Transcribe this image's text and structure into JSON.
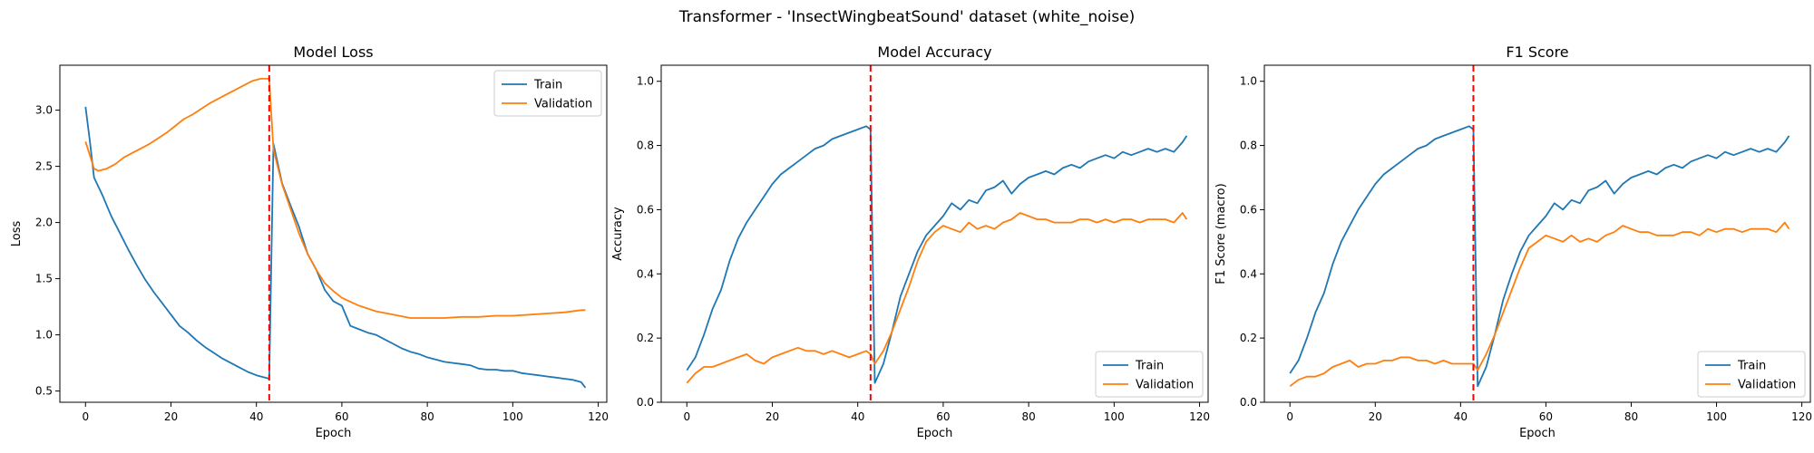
{
  "figure_title": "Transformer - 'InsectWingbeatSound' dataset (white_noise)",
  "colors": {
    "train": "#1f77b4",
    "validation": "#ff7f0e",
    "marker": "#ff0000"
  },
  "chart_data": [
    {
      "type": "line",
      "title": "Model Loss",
      "xlabel": "Epoch",
      "ylabel": "Loss",
      "xlim": [
        -6,
        122
      ],
      "ylim": [
        0.4,
        3.4
      ],
      "xticks": [
        0,
        20,
        40,
        60,
        80,
        100,
        120
      ],
      "yticks": [
        0.5,
        1.0,
        1.5,
        2.0,
        2.5,
        3.0
      ],
      "ytick_labels": [
        "0.5",
        "1.0",
        "1.5",
        "2.0",
        "2.5",
        "3.0"
      ],
      "legend_loc": "upper-right",
      "vline_x": 43,
      "series": [
        {
          "name": "Train",
          "color": "#1f77b4",
          "x": [
            0,
            1,
            2,
            4,
            6,
            8,
            10,
            12,
            14,
            16,
            18,
            20,
            22,
            24,
            26,
            28,
            30,
            32,
            34,
            36,
            38,
            40,
            42,
            43,
            44,
            46,
            48,
            50,
            52,
            54,
            56,
            58,
            60,
            62,
            64,
            66,
            68,
            70,
            72,
            74,
            76,
            78,
            80,
            82,
            84,
            86,
            88,
            90,
            92,
            94,
            96,
            98,
            100,
            102,
            104,
            106,
            108,
            110,
            112,
            114,
            116,
            117
          ],
          "y": [
            3.03,
            2.73,
            2.4,
            2.24,
            2.06,
            1.91,
            1.76,
            1.62,
            1.49,
            1.38,
            1.28,
            1.18,
            1.08,
            1.02,
            0.95,
            0.89,
            0.84,
            0.79,
            0.75,
            0.71,
            0.67,
            0.64,
            0.62,
            0.61,
            2.7,
            2.35,
            2.15,
            1.96,
            1.72,
            1.58,
            1.4,
            1.3,
            1.26,
            1.08,
            1.05,
            1.02,
            1.0,
            0.96,
            0.92,
            0.88,
            0.85,
            0.83,
            0.8,
            0.78,
            0.76,
            0.75,
            0.74,
            0.73,
            0.7,
            0.69,
            0.69,
            0.68,
            0.68,
            0.66,
            0.65,
            0.64,
            0.63,
            0.62,
            0.61,
            0.6,
            0.58,
            0.53
          ]
        },
        {
          "name": "Validation",
          "color": "#ff7f0e",
          "x": [
            0,
            1,
            2,
            3,
            5,
            7,
            9,
            11,
            13,
            15,
            17,
            19,
            21,
            23,
            25,
            27,
            29,
            31,
            33,
            35,
            37,
            39,
            41,
            43,
            44,
            46,
            48,
            50,
            52,
            54,
            56,
            58,
            60,
            64,
            68,
            72,
            76,
            80,
            84,
            88,
            92,
            96,
            100,
            104,
            108,
            112,
            116,
            117
          ],
          "y": [
            2.72,
            2.6,
            2.48,
            2.46,
            2.48,
            2.52,
            2.58,
            2.62,
            2.66,
            2.7,
            2.75,
            2.8,
            2.86,
            2.92,
            2.96,
            3.01,
            3.06,
            3.1,
            3.14,
            3.18,
            3.22,
            3.26,
            3.28,
            3.28,
            2.65,
            2.34,
            2.12,
            1.9,
            1.72,
            1.58,
            1.46,
            1.39,
            1.33,
            1.26,
            1.21,
            1.18,
            1.15,
            1.15,
            1.15,
            1.16,
            1.16,
            1.17,
            1.17,
            1.18,
            1.19,
            1.2,
            1.22,
            1.22
          ]
        }
      ]
    },
    {
      "type": "line",
      "title": "Model Accuracy",
      "xlabel": "Epoch",
      "ylabel": "Accuracy",
      "xlim": [
        -6,
        122
      ],
      "ylim": [
        0.0,
        1.05
      ],
      "xticks": [
        0,
        20,
        40,
        60,
        80,
        100,
        120
      ],
      "yticks": [
        0.0,
        0.2,
        0.4,
        0.6,
        0.8,
        1.0
      ],
      "ytick_labels": [
        "0.0",
        "0.2",
        "0.4",
        "0.6",
        "0.8",
        "1.0"
      ],
      "legend_loc": "lower-right",
      "vline_x": 43,
      "series": [
        {
          "name": "Train",
          "color": "#1f77b4",
          "x": [
            0,
            2,
            4,
            6,
            8,
            10,
            12,
            14,
            16,
            18,
            20,
            22,
            24,
            26,
            28,
            30,
            32,
            34,
            36,
            38,
            40,
            42,
            43,
            44,
            46,
            48,
            50,
            52,
            54,
            56,
            58,
            60,
            62,
            64,
            66,
            68,
            70,
            72,
            74,
            76,
            78,
            80,
            82,
            84,
            86,
            88,
            90,
            92,
            94,
            96,
            98,
            100,
            102,
            104,
            106,
            108,
            110,
            112,
            114,
            116,
            117
          ],
          "y": [
            0.1,
            0.14,
            0.21,
            0.29,
            0.35,
            0.44,
            0.51,
            0.56,
            0.6,
            0.64,
            0.68,
            0.71,
            0.73,
            0.75,
            0.77,
            0.79,
            0.8,
            0.82,
            0.83,
            0.84,
            0.85,
            0.86,
            0.85,
            0.06,
            0.12,
            0.22,
            0.33,
            0.4,
            0.47,
            0.52,
            0.55,
            0.58,
            0.62,
            0.6,
            0.63,
            0.62,
            0.66,
            0.67,
            0.69,
            0.65,
            0.68,
            0.7,
            0.71,
            0.72,
            0.71,
            0.73,
            0.74,
            0.73,
            0.75,
            0.76,
            0.77,
            0.76,
            0.78,
            0.77,
            0.78,
            0.79,
            0.78,
            0.79,
            0.78,
            0.81,
            0.83
          ]
        },
        {
          "name": "Validation",
          "color": "#ff7f0e",
          "x": [
            0,
            2,
            4,
            6,
            8,
            10,
            12,
            14,
            16,
            18,
            20,
            22,
            24,
            26,
            28,
            30,
            32,
            34,
            36,
            38,
            40,
            42,
            43,
            44,
            46,
            48,
            50,
            52,
            54,
            56,
            58,
            60,
            62,
            64,
            66,
            68,
            70,
            72,
            74,
            76,
            78,
            80,
            82,
            84,
            86,
            88,
            90,
            92,
            94,
            96,
            98,
            100,
            102,
            104,
            106,
            108,
            110,
            112,
            114,
            116,
            117
          ],
          "y": [
            0.06,
            0.09,
            0.11,
            0.11,
            0.12,
            0.13,
            0.14,
            0.15,
            0.13,
            0.12,
            0.14,
            0.15,
            0.16,
            0.17,
            0.16,
            0.16,
            0.15,
            0.16,
            0.15,
            0.14,
            0.15,
            0.16,
            0.15,
            0.12,
            0.16,
            0.22,
            0.29,
            0.36,
            0.44,
            0.5,
            0.53,
            0.55,
            0.54,
            0.53,
            0.56,
            0.54,
            0.55,
            0.54,
            0.56,
            0.57,
            0.59,
            0.58,
            0.57,
            0.57,
            0.56,
            0.56,
            0.56,
            0.57,
            0.57,
            0.56,
            0.57,
            0.56,
            0.57,
            0.57,
            0.56,
            0.57,
            0.57,
            0.57,
            0.56,
            0.59,
            0.57
          ]
        }
      ]
    },
    {
      "type": "line",
      "title": "F1 Score",
      "xlabel": "Epoch",
      "ylabel": "F1 Score (macro)",
      "xlim": [
        -6,
        122
      ],
      "ylim": [
        0.0,
        1.05
      ],
      "xticks": [
        0,
        20,
        40,
        60,
        80,
        100,
        120
      ],
      "yticks": [
        0.0,
        0.2,
        0.4,
        0.6,
        0.8,
        1.0
      ],
      "ytick_labels": [
        "0.0",
        "0.2",
        "0.4",
        "0.6",
        "0.8",
        "1.0"
      ],
      "legend_loc": "lower-right",
      "vline_x": 43,
      "series": [
        {
          "name": "Train",
          "color": "#1f77b4",
          "x": [
            0,
            2,
            4,
            6,
            8,
            10,
            12,
            14,
            16,
            18,
            20,
            22,
            24,
            26,
            28,
            30,
            32,
            34,
            36,
            38,
            40,
            42,
            43,
            44,
            46,
            48,
            50,
            52,
            54,
            56,
            58,
            60,
            62,
            64,
            66,
            68,
            70,
            72,
            74,
            76,
            78,
            80,
            82,
            84,
            86,
            88,
            90,
            92,
            94,
            96,
            98,
            100,
            102,
            104,
            106,
            108,
            110,
            112,
            114,
            116,
            117
          ],
          "y": [
            0.09,
            0.13,
            0.2,
            0.28,
            0.34,
            0.43,
            0.5,
            0.55,
            0.6,
            0.64,
            0.68,
            0.71,
            0.73,
            0.75,
            0.77,
            0.79,
            0.8,
            0.82,
            0.83,
            0.84,
            0.85,
            0.86,
            0.85,
            0.05,
            0.11,
            0.21,
            0.32,
            0.4,
            0.47,
            0.52,
            0.55,
            0.58,
            0.62,
            0.6,
            0.63,
            0.62,
            0.66,
            0.67,
            0.69,
            0.65,
            0.68,
            0.7,
            0.71,
            0.72,
            0.71,
            0.73,
            0.74,
            0.73,
            0.75,
            0.76,
            0.77,
            0.76,
            0.78,
            0.77,
            0.78,
            0.79,
            0.78,
            0.79,
            0.78,
            0.81,
            0.83
          ]
        },
        {
          "name": "Validation",
          "color": "#ff7f0e",
          "x": [
            0,
            2,
            4,
            6,
            8,
            10,
            12,
            14,
            16,
            18,
            20,
            22,
            24,
            26,
            28,
            30,
            32,
            34,
            36,
            38,
            40,
            42,
            43,
            44,
            46,
            48,
            50,
            52,
            54,
            56,
            58,
            60,
            62,
            64,
            66,
            68,
            70,
            72,
            74,
            76,
            78,
            80,
            82,
            84,
            86,
            88,
            90,
            92,
            94,
            96,
            98,
            100,
            102,
            104,
            106,
            108,
            110,
            112,
            114,
            116,
            117
          ],
          "y": [
            0.05,
            0.07,
            0.08,
            0.08,
            0.09,
            0.11,
            0.12,
            0.13,
            0.11,
            0.12,
            0.12,
            0.13,
            0.13,
            0.14,
            0.14,
            0.13,
            0.13,
            0.12,
            0.13,
            0.12,
            0.12,
            0.12,
            0.12,
            0.1,
            0.15,
            0.21,
            0.28,
            0.35,
            0.42,
            0.48,
            0.5,
            0.52,
            0.51,
            0.5,
            0.52,
            0.5,
            0.51,
            0.5,
            0.52,
            0.53,
            0.55,
            0.54,
            0.53,
            0.53,
            0.52,
            0.52,
            0.52,
            0.53,
            0.53,
            0.52,
            0.54,
            0.53,
            0.54,
            0.54,
            0.53,
            0.54,
            0.54,
            0.54,
            0.53,
            0.56,
            0.54
          ]
        }
      ]
    }
  ]
}
